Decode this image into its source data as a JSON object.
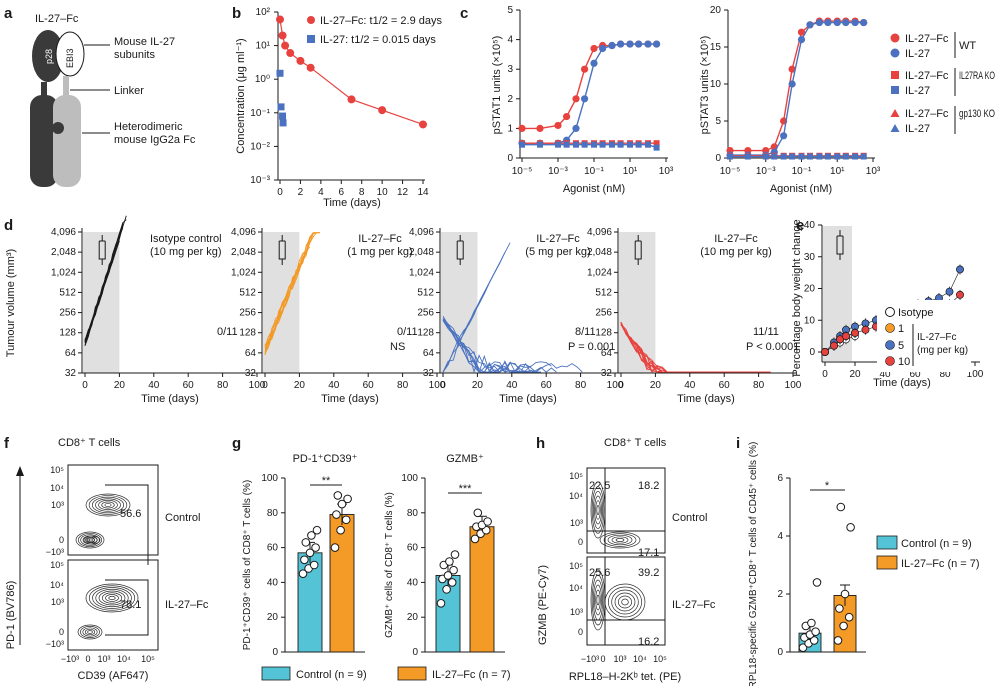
{
  "colors": {
    "il27fc": "#e8423f",
    "il27": "#4a72c0",
    "orange": "#f39a27",
    "cyan": "#55c3d6",
    "dark": "#3a3a3a",
    "light": "#bdbdbd",
    "shade": "#e0e0e0"
  },
  "panels": {
    "a": {
      "letter": "a",
      "title": "IL-27–Fc",
      "p28": "p28",
      "ebi3": "EBI3",
      "labels": [
        "Mouse IL-27",
        "subunits",
        "Linker",
        "Heterodimeric",
        "mouse IgG2a Fc"
      ]
    },
    "b": {
      "letter": "b",
      "ylabel": "Concentration (μg ml⁻¹)",
      "xlabel": "Time (days)",
      "yticks": [
        "10²",
        "10¹",
        "10⁰",
        "10⁻¹",
        "10⁻²",
        "10⁻³"
      ],
      "xticks": [
        "0",
        "2",
        "4",
        "6",
        "8",
        "10",
        "12",
        "14"
      ],
      "legend": [
        "IL-27–Fc: t1/2 = 2.9 days",
        "IL-27: t1/2 = 0.015 days"
      ]
    },
    "c": {
      "letter": "c",
      "ylabel1": "pSTAT1 units (×10⁵)",
      "ylabel2": "pSTAT3 units (×10⁵)",
      "xlabel": "Agonist (nM)",
      "yticks1": [
        "0",
        "1",
        "2",
        "3",
        "4",
        "5"
      ],
      "yticks2": [
        "0",
        "5",
        "10",
        "15",
        "20"
      ],
      "xticks": [
        "10⁻⁵",
        "10⁻³",
        "10⁻¹",
        "10¹",
        "10³"
      ],
      "legend": [
        {
          "a": "IL-27–Fc",
          "b": "IL-27",
          "group": "WT"
        },
        {
          "a": "IL-27–Fc",
          "b": "IL-27",
          "group": "IL27RA KO"
        },
        {
          "a": "IL-27–Fc",
          "b": "IL-27",
          "group": "gp130 KO"
        }
      ]
    },
    "d": {
      "letter": "d",
      "ylabel": "Tumour volume (mm³)",
      "xlabel": "Time (days)",
      "yticks": [
        "4,096",
        "2,048",
        "1,024",
        "512",
        "256",
        "128",
        "64",
        "32"
      ],
      "xticks": [
        "0",
        "20",
        "40",
        "60",
        "80",
        "100"
      ],
      "subpanels": [
        {
          "title": "Isotype control",
          "dose": "(10 mg per kg)",
          "count": "0/11",
          "stat": ""
        },
        {
          "title": "IL-27–Fc",
          "dose": "(1 mg per kg)",
          "count": "0/11",
          "stat": "NS"
        },
        {
          "title": "IL-27–Fc",
          "dose": "(5 mg per kg)",
          "count": "8/11",
          "stat": "P = 0.001"
        },
        {
          "title": "IL-27–Fc",
          "dose": "(10 mg per kg)",
          "count": "11/11",
          "stat": "P < 0.0001"
        }
      ]
    },
    "e": {
      "letter": "e",
      "ylabel": "Percentage body weight change",
      "xlabel": "Time (days)",
      "yticks": [
        "40",
        "30",
        "20",
        "10",
        "0"
      ],
      "xticks": [
        "0",
        "20",
        "40",
        "60",
        "80",
        "100"
      ],
      "legend": [
        "Isotype",
        "1",
        "5",
        "10"
      ],
      "legend_group": "IL-27–Fc",
      "legend_unit": "(mg per kg)"
    },
    "f": {
      "letter": "f",
      "title": "CD8⁺ T cells",
      "ylabel": "PD-1 (BV786)",
      "xlabel": "CD39 (AF647)",
      "gate_control": "56.6",
      "gate_treated": "78.1",
      "row_control": "Control",
      "row_treated": "IL-27–Fc",
      "yticks": [
        "10⁵",
        "10⁴",
        "10³",
        "0",
        "−10³"
      ],
      "xticks": [
        "−10³",
        "0",
        "10³",
        "10⁴",
        "10⁵"
      ]
    },
    "g": {
      "letter": "g",
      "title1": "PD-1⁺CD39⁺",
      "title2": "GZMB⁺",
      "ylabel1": "PD-1⁺CD39⁺ cells of CD8⁺ T cells (%)",
      "ylabel2": "GZMB⁺ cells of CD8⁺ T cells (%)",
      "yticks": [
        "100",
        "80",
        "60",
        "40",
        "20",
        "0"
      ],
      "sig1": "**",
      "sig2": "***",
      "legend": [
        "Control (n = 9)",
        "IL-27–Fc (n = 7)"
      ]
    },
    "h": {
      "letter": "h",
      "title": "CD8⁺ T cells",
      "ylabel": "GZMB (PE-Cy7)",
      "xlabel": "RPL18–H-2Kᵇ tet. (PE)",
      "control": {
        "ul": "22.5",
        "ur": "18.2",
        "lr": "17.1"
      },
      "treated": {
        "ul": "25.6",
        "ur": "39.2",
        "lr": "16.2"
      },
      "row_control": "Control",
      "row_treated": "IL-27–Fc",
      "yticks": [
        "10⁵",
        "10⁴",
        "10³",
        "0"
      ],
      "xticks": [
        "−10³",
        "0",
        "10³",
        "10⁴",
        "10⁵"
      ]
    },
    "i": {
      "letter": "i",
      "ylabel": "RPL18-specific GZMB⁺CD8⁺ T cells of CD45⁺ cells (%)",
      "yticks": [
        "6",
        "4",
        "2",
        "0"
      ],
      "sig": "*",
      "legend": [
        "Control (n = 9)",
        "IL-27–Fc (n = 7)"
      ]
    }
  },
  "chart_data": [
    {
      "id": "b",
      "type": "scatter",
      "xlabel": "Time (days)",
      "ylabel": "Concentration (μg ml⁻¹)",
      "yscale": "log",
      "xlim": [
        0,
        14
      ],
      "ylim": [
        0.001,
        100
      ],
      "series": [
        {
          "name": "IL-27–Fc",
          "x": [
            0,
            0.25,
            0.5,
            1,
            2,
            3,
            7,
            10,
            14
          ],
          "y": [
            60,
            20,
            10,
            6,
            3.5,
            2.2,
            0.25,
            0.12,
            0.045
          ]
        },
        {
          "name": "IL-27",
          "x": [
            0,
            0.1,
            0.25,
            0.3
          ],
          "y": [
            1.5,
            0.15,
            0.08,
            0.05
          ]
        }
      ]
    },
    {
      "id": "c-pSTAT1",
      "type": "line",
      "xlabel": "Agonist (nM)",
      "ylabel": "pSTAT1 units (×10⁵)",
      "xscale": "log",
      "x": [
        1e-05,
        0.0001,
        0.001,
        0.003,
        0.01,
        0.03,
        0.1,
        0.3,
        1,
        3,
        10,
        30,
        100,
        300
      ],
      "series": [
        {
          "name": "IL-27–Fc WT",
          "values": [
            1.0,
            1.0,
            1.1,
            1.4,
            2.0,
            3.0,
            3.7,
            3.8,
            3.8,
            3.85,
            3.85,
            3.85,
            3.85,
            3.85
          ]
        },
        {
          "name": "IL-27 WT",
          "values": [
            0.5,
            0.5,
            0.5,
            0.6,
            1.0,
            2.0,
            3.2,
            3.7,
            3.8,
            3.85,
            3.85,
            3.85,
            3.85,
            3.85
          ]
        },
        {
          "name": "IL-27–Fc IL27RA KO",
          "values": [
            0.5,
            0.5,
            0.5,
            0.5,
            0.5,
            0.5,
            0.5,
            0.5,
            0.5,
            0.5,
            0.5,
            0.5,
            0.5,
            0.5
          ]
        },
        {
          "name": "IL-27 IL27RA KO",
          "values": [
            0.45,
            0.45,
            0.45,
            0.45,
            0.45,
            0.45,
            0.45,
            0.45,
            0.45,
            0.45,
            0.45,
            0.45,
            0.45,
            0.35
          ]
        }
      ]
    },
    {
      "id": "c-pSTAT3",
      "type": "line",
      "xlabel": "Agonist (nM)",
      "ylabel": "pSTAT3 units (×10⁵)",
      "xscale": "log",
      "x": [
        1e-05,
        0.0001,
        0.001,
        0.003,
        0.01,
        0.03,
        0.1,
        0.3,
        1,
        3,
        10,
        30,
        100,
        300
      ],
      "series": [
        {
          "name": "IL-27–Fc WT",
          "values": [
            1.0,
            1.0,
            1.0,
            1.5,
            5,
            12,
            17,
            18,
            18.5,
            18.5,
            18.5,
            18.5,
            18.5,
            18.3
          ]
        },
        {
          "name": "IL-27 WT",
          "values": [
            0.4,
            0.4,
            0.4,
            0.8,
            3,
            10,
            16,
            18,
            18.3,
            18.3,
            18.3,
            18.3,
            18.3,
            18.3
          ]
        },
        {
          "name": "IL-27–Fc IL27RA KO",
          "values": [
            0.3,
            0.3,
            0.3,
            0.3,
            0.3,
            0.3,
            0.3,
            0.3,
            0.3,
            0.3,
            0.3,
            0.3,
            0.3,
            0.3
          ]
        },
        {
          "name": "IL-27 IL27RA KO",
          "values": [
            0.2,
            0.2,
            0.2,
            0.2,
            0.2,
            0.2,
            0.2,
            0.2,
            0.2,
            0.2,
            0.2,
            0.2,
            0.2,
            0.2
          ]
        }
      ]
    },
    {
      "id": "e",
      "type": "scatter",
      "xlabel": "Time (days)",
      "ylabel": "Percentage body weight change",
      "x": [
        0,
        6,
        10,
        14,
        20,
        27,
        34,
        41,
        48,
        55,
        62,
        69,
        76,
        83,
        90
      ],
      "series": [
        {
          "name": "Isotype",
          "values": [
            0,
            2,
            3,
            4,
            5
          ]
        },
        {
          "name": "1",
          "values": [
            0,
            2,
            4,
            5,
            6
          ]
        },
        {
          "name": "5",
          "values": [
            0,
            3,
            5,
            7,
            8,
            9,
            10,
            11,
            12,
            13,
            15,
            16,
            17,
            19,
            26
          ]
        },
        {
          "name": "10",
          "values": [
            0,
            2,
            4,
            5,
            6,
            7,
            8,
            9,
            10,
            11,
            12,
            13,
            14,
            15,
            18
          ]
        }
      ]
    },
    {
      "id": "g-PD1CD39",
      "type": "bar",
      "ylabel": "PD-1⁺CD39⁺ cells of CD8⁺ T cells (%)",
      "ylim": [
        0,
        100
      ],
      "categories": [
        "Control",
        "IL-27–Fc"
      ],
      "values": [
        57,
        79
      ],
      "points": [
        [
          45,
          48,
          50,
          53,
          57,
          60,
          63,
          67,
          70
        ],
        [
          60,
          70,
          76,
          79,
          85,
          88,
          90
        ]
      ]
    },
    {
      "id": "g-GZMB",
      "type": "bar",
      "ylabel": "GZMB⁺ cells of CD8⁺ T cells (%)",
      "ylim": [
        0,
        100
      ],
      "categories": [
        "Control",
        "IL-27–Fc"
      ],
      "values": [
        44,
        72
      ],
      "points": [
        [
          28,
          36,
          40,
          42,
          44,
          47,
          50,
          52,
          56
        ],
        [
          65,
          68,
          70,
          72,
          73,
          75,
          80
        ]
      ]
    },
    {
      "id": "i",
      "type": "bar",
      "ylabel": "RPL18-specific GZMB⁺CD8⁺ T cells of CD45⁺ cells (%)",
      "ylim": [
        0,
        6
      ],
      "categories": [
        "Control",
        "IL-27–Fc"
      ],
      "values": [
        0.65,
        1.95
      ],
      "points": [
        [
          0.15,
          0.3,
          0.4,
          0.5,
          0.6,
          0.7,
          0.9,
          1.0,
          2.4
        ],
        [
          0.4,
          0.9,
          1.2,
          1.5,
          2.0,
          4.3,
          5.0
        ]
      ]
    }
  ]
}
